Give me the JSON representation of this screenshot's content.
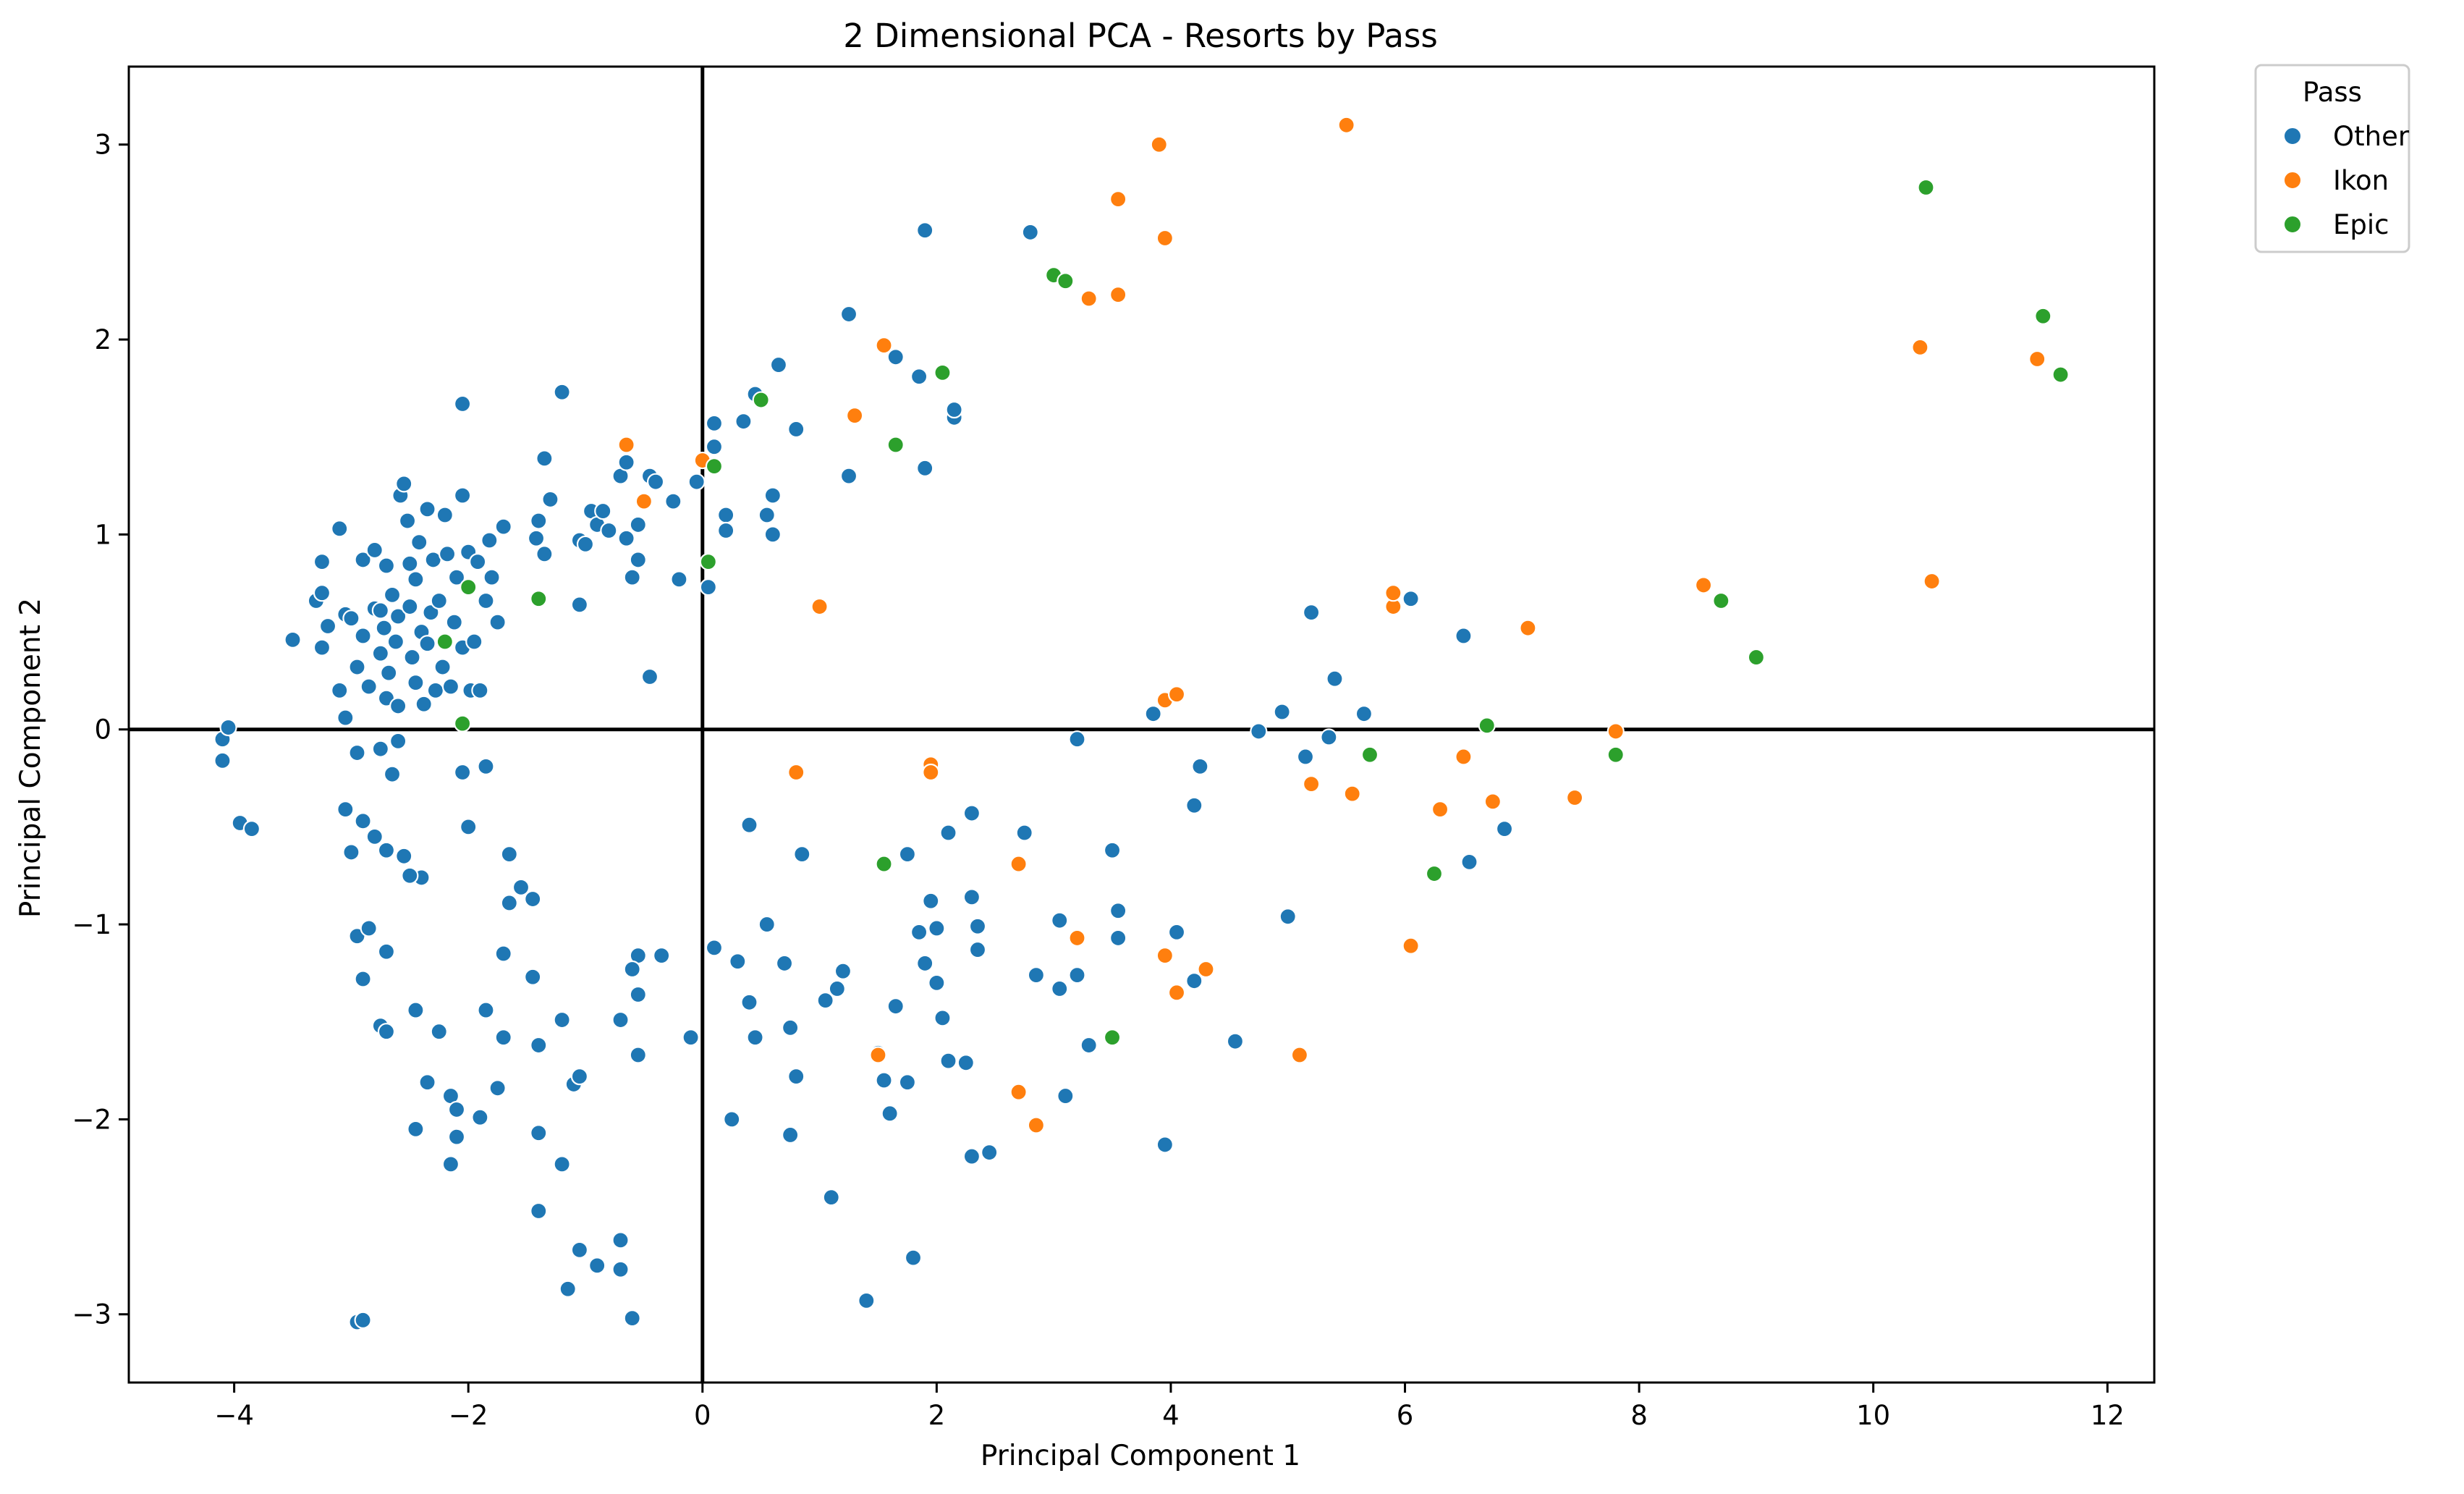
{
  "chart_data": {
    "type": "scatter",
    "title": "2 Dimensional PCA - Resorts by Pass",
    "xlabel": "Principal Component 1",
    "ylabel": "Principal Component 2",
    "xlim": [
      -4.9,
      12.4
    ],
    "ylim": [
      -3.35,
      3.4
    ],
    "xticks": [
      -4,
      -2,
      0,
      2,
      4,
      6,
      8,
      10,
      12
    ],
    "yticks": [
      -3,
      -2,
      -1,
      0,
      1,
      2,
      3
    ],
    "grid": false,
    "reference_lines": {
      "x": 0,
      "y": 0
    },
    "legend": {
      "title": "Pass",
      "placement": "outside-top-right"
    },
    "series": [
      {
        "name": "Other",
        "color": "#1f77b4",
        "points": [
          [
            -4.1,
            -0.05
          ],
          [
            -4.05,
            0.01
          ],
          [
            -4.1,
            -0.16
          ],
          [
            -3.95,
            -0.48
          ],
          [
            -3.85,
            -0.51
          ],
          [
            -3.5,
            0.46
          ],
          [
            -3.3,
            0.66
          ],
          [
            -3.25,
            0.86
          ],
          [
            -3.25,
            0.42
          ],
          [
            -3.2,
            0.53
          ],
          [
            -3.25,
            0.7
          ],
          [
            -3.1,
            0.2
          ],
          [
            -3.05,
            0.59
          ],
          [
            -3.05,
            0.06
          ],
          [
            -3.1,
            1.03
          ],
          [
            -3.0,
            0.57
          ],
          [
            -2.95,
            0.32
          ],
          [
            -2.9,
            0.48
          ],
          [
            -2.9,
            0.87
          ],
          [
            -2.85,
            0.22
          ],
          [
            -2.8,
            0.62
          ],
          [
            -2.8,
            0.92
          ],
          [
            -2.75,
            0.39
          ],
          [
            -2.75,
            0.61
          ],
          [
            -2.72,
            0.52
          ],
          [
            -2.7,
            0.84
          ],
          [
            -2.7,
            0.16
          ],
          [
            -2.68,
            0.29
          ],
          [
            -2.65,
            0.69
          ],
          [
            -2.62,
            0.45
          ],
          [
            -2.6,
            0.58
          ],
          [
            -2.6,
            0.12
          ],
          [
            -2.58,
            1.2
          ],
          [
            -2.55,
            1.26
          ],
          [
            -2.52,
            1.07
          ],
          [
            -2.5,
            0.85
          ],
          [
            -2.5,
            0.63
          ],
          [
            -2.48,
            0.37
          ],
          [
            -2.45,
            0.77
          ],
          [
            -2.45,
            0.24
          ],
          [
            -2.42,
            0.96
          ],
          [
            -2.4,
            0.5
          ],
          [
            -2.38,
            0.13
          ],
          [
            -2.35,
            1.13
          ],
          [
            -2.35,
            0.44
          ],
          [
            -2.32,
            0.6
          ],
          [
            -2.3,
            0.87
          ],
          [
            -2.28,
            0.2
          ],
          [
            -2.25,
            0.66
          ],
          [
            -2.22,
            0.32
          ],
          [
            -2.2,
            1.1
          ],
          [
            -2.18,
            0.9
          ],
          [
            -2.15,
            0.22
          ],
          [
            -2.12,
            0.55
          ],
          [
            -2.1,
            0.78
          ],
          [
            -2.05,
            1.2
          ],
          [
            -2.05,
            0.42
          ],
          [
            -2.0,
            0.91
          ],
          [
            -1.98,
            0.2
          ],
          [
            -1.95,
            0.45
          ],
          [
            -1.92,
            0.86
          ],
          [
            -1.9,
            0.2
          ],
          [
            -1.85,
            0.66
          ],
          [
            -1.82,
            0.97
          ],
          [
            -1.8,
            0.78
          ],
          [
            -1.75,
            0.55
          ],
          [
            -1.7,
            1.04
          ],
          [
            -1.4,
            1.07
          ],
          [
            -1.42,
            0.98
          ],
          [
            -1.35,
            0.9
          ],
          [
            -1.3,
            1.18
          ],
          [
            -1.35,
            1.39
          ],
          [
            -1.2,
            1.73
          ],
          [
            -1.05,
            0.97
          ],
          [
            -1.0,
            0.95
          ],
          [
            -1.05,
            0.64
          ],
          [
            -0.95,
            1.12
          ],
          [
            -0.9,
            1.05
          ],
          [
            -0.85,
            1.12
          ],
          [
            -0.8,
            1.02
          ],
          [
            -0.7,
            1.3
          ],
          [
            -0.65,
            1.37
          ],
          [
            -0.65,
            0.98
          ],
          [
            -0.6,
            0.78
          ],
          [
            -0.55,
            0.87
          ],
          [
            -0.55,
            1.05
          ],
          [
            -0.45,
            1.3
          ],
          [
            -0.4,
            1.27
          ],
          [
            -0.25,
            1.17
          ],
          [
            -0.2,
            0.77
          ],
          [
            -0.05,
            1.27
          ],
          [
            0.05,
            0.73
          ],
          [
            0.1,
            1.57
          ],
          [
            0.1,
            1.45
          ],
          [
            0.2,
            1.1
          ],
          [
            0.2,
            1.02
          ],
          [
            0.35,
            1.58
          ],
          [
            0.45,
            1.72
          ],
          [
            0.55,
            1.1
          ],
          [
            0.6,
            1.2
          ],
          [
            0.6,
            1.0
          ],
          [
            0.65,
            1.87
          ],
          [
            0.8,
            1.54
          ],
          [
            -0.45,
            0.27
          ],
          [
            -2.05,
            1.67
          ],
          [
            -2.6,
            -0.06
          ],
          [
            -2.75,
            -0.1
          ],
          [
            -2.65,
            -0.23
          ],
          [
            -2.95,
            -0.12
          ],
          [
            -2.05,
            -0.22
          ],
          [
            -1.85,
            -0.19
          ],
          [
            -3.05,
            -0.41
          ],
          [
            -3.0,
            -0.63
          ],
          [
            -2.9,
            -0.47
          ],
          [
            -2.8,
            -0.55
          ],
          [
            -2.7,
            -0.62
          ],
          [
            -2.55,
            -0.65
          ],
          [
            -2.4,
            -0.76
          ],
          [
            -2.5,
            -0.75
          ],
          [
            -2.0,
            -0.5
          ],
          [
            -1.65,
            -0.64
          ],
          [
            -1.55,
            -0.81
          ],
          [
            -1.65,
            -0.89
          ],
          [
            -1.45,
            -0.87
          ],
          [
            -2.95,
            -1.06
          ],
          [
            -2.85,
            -1.02
          ],
          [
            -2.7,
            -1.14
          ],
          [
            -2.9,
            -1.28
          ],
          [
            -2.75,
            -1.52
          ],
          [
            -2.7,
            -1.55
          ],
          [
            -2.45,
            -1.44
          ],
          [
            -2.25,
            -1.55
          ],
          [
            -2.35,
            -1.81
          ],
          [
            -2.15,
            -1.88
          ],
          [
            -2.1,
            -1.95
          ],
          [
            -1.9,
            -1.99
          ],
          [
            -2.45,
            -2.05
          ],
          [
            -2.1,
            -2.09
          ],
          [
            -2.15,
            -2.23
          ],
          [
            -1.85,
            -1.44
          ],
          [
            -1.7,
            -1.58
          ],
          [
            -1.7,
            -1.15
          ],
          [
            -1.4,
            -1.62
          ],
          [
            -1.45,
            -1.27
          ],
          [
            -1.2,
            -1.49
          ],
          [
            -1.75,
            -1.84
          ],
          [
            -1.4,
            -2.07
          ],
          [
            -1.2,
            -2.23
          ],
          [
            -1.1,
            -1.82
          ],
          [
            -1.05,
            -1.78
          ],
          [
            -1.4,
            -2.47
          ],
          [
            -1.05,
            -2.67
          ],
          [
            -0.9,
            -2.75
          ],
          [
            -1.15,
            -2.87
          ],
          [
            -0.7,
            -2.62
          ],
          [
            -0.7,
            -2.77
          ],
          [
            -0.6,
            -3.02
          ],
          [
            -2.95,
            -3.04
          ],
          [
            -2.9,
            -3.03
          ],
          [
            -0.55,
            -1.16
          ],
          [
            -0.6,
            -1.23
          ],
          [
            -0.55,
            -1.36
          ],
          [
            -0.35,
            -1.16
          ],
          [
            -0.7,
            -1.49
          ],
          [
            -0.55,
            -1.67
          ],
          [
            -0.1,
            -1.58
          ],
          [
            0.1,
            -1.12
          ],
          [
            0.3,
            -1.19
          ],
          [
            0.4,
            -1.4
          ],
          [
            0.45,
            -1.58
          ],
          [
            0.55,
            -1.0
          ],
          [
            0.7,
            -1.2
          ],
          [
            0.75,
            -1.53
          ],
          [
            0.8,
            -1.78
          ],
          [
            0.75,
            -2.08
          ],
          [
            0.25,
            -2.0
          ],
          [
            0.4,
            -0.49
          ],
          [
            0.85,
            -0.64
          ],
          [
            1.05,
            -1.39
          ],
          [
            1.2,
            -1.24
          ],
          [
            1.15,
            -1.33
          ],
          [
            1.1,
            -2.4
          ],
          [
            1.4,
            -2.93
          ],
          [
            1.8,
            -2.71
          ],
          [
            1.5,
            -1.66
          ],
          [
            1.55,
            -1.8
          ],
          [
            1.6,
            -1.97
          ],
          [
            1.65,
            -1.42
          ],
          [
            1.75,
            -0.64
          ],
          [
            1.75,
            -1.81
          ],
          [
            1.85,
            -1.04
          ],
          [
            1.9,
            -1.2
          ],
          [
            1.95,
            -0.88
          ],
          [
            2.0,
            -1.02
          ],
          [
            2.0,
            -1.3
          ],
          [
            2.05,
            -1.48
          ],
          [
            2.1,
            -1.7
          ],
          [
            2.1,
            -0.53
          ],
          [
            2.25,
            -1.71
          ],
          [
            2.3,
            -0.43
          ],
          [
            2.3,
            -0.86
          ],
          [
            2.35,
            -1.01
          ],
          [
            2.35,
            -1.13
          ],
          [
            2.3,
            -2.19
          ],
          [
            2.45,
            -2.17
          ],
          [
            2.75,
            -0.53
          ],
          [
            2.85,
            -1.26
          ],
          [
            3.05,
            -0.98
          ],
          [
            3.05,
            -1.33
          ],
          [
            3.2,
            -1.26
          ],
          [
            3.1,
            -1.88
          ],
          [
            3.3,
            -1.62
          ],
          [
            3.5,
            -0.62
          ],
          [
            3.55,
            -0.93
          ],
          [
            3.55,
            -1.07
          ],
          [
            3.95,
            -2.13
          ],
          [
            4.05,
            -1.04
          ],
          [
            4.2,
            -1.29
          ],
          [
            4.55,
            -1.6
          ],
          [
            5.0,
            -0.96
          ],
          [
            4.2,
            -0.39
          ],
          [
            4.25,
            -0.19
          ],
          [
            3.2,
            -0.05
          ],
          [
            3.85,
            0.08
          ],
          [
            4.75,
            -0.01
          ],
          [
            4.95,
            0.09
          ],
          [
            5.15,
            -0.14
          ],
          [
            5.35,
            -0.04
          ],
          [
            5.4,
            0.26
          ],
          [
            5.65,
            0.08
          ],
          [
            5.2,
            0.6
          ],
          [
            6.05,
            0.67
          ],
          [
            6.5,
            0.48
          ],
          [
            6.55,
            -0.68
          ],
          [
            6.85,
            -0.51
          ],
          [
            1.25,
            2.13
          ],
          [
            1.25,
            1.3
          ],
          [
            1.65,
            1.91
          ],
          [
            1.85,
            1.81
          ],
          [
            1.9,
            1.34
          ],
          [
            1.9,
            2.56
          ],
          [
            2.15,
            1.6
          ],
          [
            2.15,
            1.64
          ],
          [
            2.8,
            2.55
          ]
        ]
      },
      {
        "name": "Ikon",
        "color": "#ff7f0e",
        "points": [
          [
            -0.65,
            1.46
          ],
          [
            -0.5,
            1.17
          ],
          [
            0.0,
            1.38
          ],
          [
            1.0,
            0.63
          ],
          [
            1.3,
            1.61
          ],
          [
            1.55,
            1.97
          ],
          [
            3.9,
            3.0
          ],
          [
            5.5,
            3.1
          ],
          [
            3.55,
            2.72
          ],
          [
            3.95,
            2.52
          ],
          [
            3.55,
            2.23
          ],
          [
            3.3,
            2.21
          ],
          [
            0.8,
            -0.22
          ],
          [
            1.95,
            -0.18
          ],
          [
            1.95,
            -0.22
          ],
          [
            2.7,
            -0.69
          ],
          [
            3.2,
            -1.07
          ],
          [
            3.95,
            -1.16
          ],
          [
            4.05,
            -1.35
          ],
          [
            4.3,
            -1.23
          ],
          [
            5.1,
            -1.67
          ],
          [
            6.05,
            -1.11
          ],
          [
            2.7,
            -1.86
          ],
          [
            2.85,
            -2.03
          ],
          [
            1.5,
            -1.67
          ],
          [
            3.95,
            0.15
          ],
          [
            4.05,
            0.18
          ],
          [
            5.2,
            -0.28
          ],
          [
            5.55,
            -0.33
          ],
          [
            5.9,
            0.63
          ],
          [
            5.9,
            0.7
          ],
          [
            6.3,
            -0.41
          ],
          [
            6.5,
            -0.14
          ],
          [
            6.75,
            -0.37
          ],
          [
            7.05,
            0.52
          ],
          [
            7.45,
            -0.35
          ],
          [
            7.8,
            -0.01
          ],
          [
            8.55,
            0.74
          ],
          [
            10.4,
            1.96
          ],
          [
            11.4,
            1.9
          ],
          [
            10.5,
            0.76
          ]
        ]
      },
      {
        "name": "Epic",
        "color": "#2ca02c",
        "points": [
          [
            -2.0,
            0.73
          ],
          [
            -2.2,
            0.45
          ],
          [
            -2.05,
            0.03
          ],
          [
            -1.4,
            0.67
          ],
          [
            0.05,
            0.86
          ],
          [
            0.1,
            1.35
          ],
          [
            0.5,
            1.69
          ],
          [
            1.65,
            1.46
          ],
          [
            2.05,
            1.83
          ],
          [
            3.0,
            2.33
          ],
          [
            3.1,
            2.3
          ],
          [
            1.55,
            -0.69
          ],
          [
            3.5,
            -1.58
          ],
          [
            5.7,
            -0.13
          ],
          [
            6.25,
            -0.74
          ],
          [
            6.7,
            0.02
          ],
          [
            7.8,
            -0.13
          ],
          [
            8.7,
            0.66
          ],
          [
            9.0,
            0.37
          ],
          [
            10.45,
            2.78
          ],
          [
            11.45,
            2.12
          ],
          [
            11.6,
            1.82
          ]
        ]
      }
    ]
  }
}
